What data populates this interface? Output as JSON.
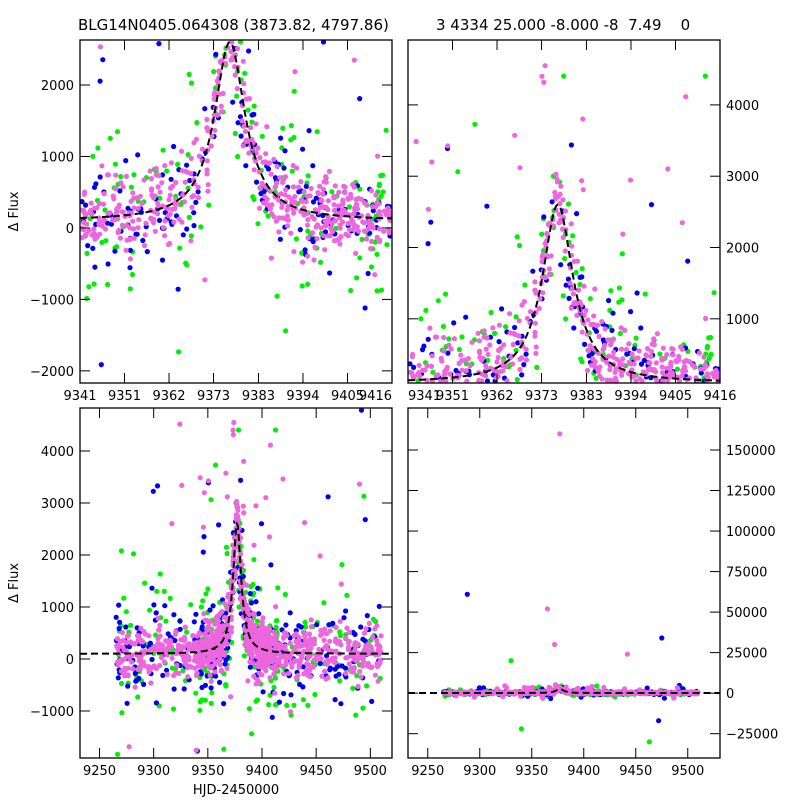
{
  "titles": {
    "left": "BLG14N0405.064308 (3873.82, 4797.86)",
    "right": "3 4334 25.000 -8.000 -8  7.49    0"
  },
  "chart_data": {
    "type": "scatter",
    "series": [
      {
        "name": "green",
        "color": "#00ee00",
        "n": 260,
        "sigma": 800,
        "seed": 11
      },
      {
        "name": "blue",
        "color": "#0000ee",
        "n": 330,
        "sigma": 550,
        "seed": 23
      },
      {
        "name": "pink",
        "color": "#ee66dd",
        "n": 900,
        "sigma": 330,
        "seed": 37
      }
    ],
    "model": {
      "t0": 9377,
      "tE": 4.5,
      "base": 100,
      "amp": 2500,
      "style": "dashed",
      "color": "#000000"
    },
    "time_range": [
      9245,
      9510
    ],
    "outliers": [
      {
        "series": "pink",
        "x": 9377,
        "y": 160000
      },
      {
        "series": "blue",
        "x": 9288,
        "y": 61000
      },
      {
        "series": "pink",
        "x": 9365,
        "y": 52000
      },
      {
        "series": "blue",
        "x": 9475,
        "y": 34000
      },
      {
        "series": "pink",
        "x": 9372,
        "y": 30000
      },
      {
        "series": "pink",
        "x": 9442,
        "y": 24000
      },
      {
        "series": "green",
        "x": 9463,
        "y": -30000
      },
      {
        "series": "blue",
        "x": 9472,
        "y": -17000
      },
      {
        "series": "green",
        "x": 9330,
        "y": 20000
      },
      {
        "series": "green",
        "x": 9340,
        "y": -22000
      }
    ],
    "panels": [
      {
        "id": "top-left",
        "xlim": [
          9341,
          9416
        ],
        "ylim": [
          -2170,
          2630
        ],
        "xticks": [
          "9341",
          "9351",
          "9362",
          "9373",
          "9383",
          "9394",
          "9405",
          "9416"
        ],
        "xtickvals": [
          9341,
          9351.7,
          9362.4,
          9373.1,
          9383.9,
          9394.6,
          9405.3,
          9416
        ],
        "yticks": [
          "2000",
          "1000",
          "0",
          "−1000",
          "−2000"
        ],
        "ytickvals": [
          2000,
          1000,
          0,
          -1000,
          -2000
        ],
        "yaxis": "left",
        "ylabel": "Δ Flux",
        "xlabel": ""
      },
      {
        "id": "top-right",
        "xlim": [
          9341,
          9416
        ],
        "ylim": [
          100,
          4910
        ],
        "xticks": [
          "9341",
          "9351",
          "9362",
          "9373",
          "9383",
          "9394",
          "9405",
          "9416"
        ],
        "xtickvals": [
          9341,
          9351.7,
          9362.4,
          9373.1,
          9383.9,
          9394.6,
          9405.3,
          9416
        ],
        "yticks": [
          "4000",
          "3000",
          "2000",
          "1000"
        ],
        "ytickvals": [
          4000,
          3000,
          2000,
          1000
        ],
        "yaxis": "right",
        "ylabel": "",
        "xlabel": ""
      },
      {
        "id": "bottom-left",
        "xlim": [
          9232,
          9520
        ],
        "ylim": [
          -1904,
          4827
        ],
        "xticks": [
          "9250",
          "9300",
          "9350",
          "9400",
          "9450",
          "9500"
        ],
        "xtickvals": [
          9250,
          9300,
          9350,
          9400,
          9450,
          9500
        ],
        "yticks": [
          "4000",
          "3000",
          "2000",
          "1000",
          "0",
          "−1000"
        ],
        "ytickvals": [
          4000,
          3000,
          2000,
          1000,
          0,
          -1000
        ],
        "yaxis": "left",
        "ylabel": "Δ Flux",
        "xlabel": "HJD-2450000"
      },
      {
        "id": "bottom-right",
        "xlim": [
          9231,
          9531
        ],
        "ylim": [
          -40000,
          175900
        ],
        "xticks": [
          "9250",
          "9300",
          "9350",
          "9400",
          "9450",
          "9500"
        ],
        "xtickvals": [
          9250,
          9300,
          9350,
          9400,
          9450,
          9500
        ],
        "yticks": [
          "150000",
          "125000",
          "100000",
          "75000",
          "50000",
          "25000",
          "0",
          "−25000"
        ],
        "ytickvals": [
          150000,
          125000,
          100000,
          75000,
          50000,
          25000,
          0,
          -25000
        ],
        "yaxis": "right",
        "ylabel": "",
        "xlabel": ""
      }
    ]
  }
}
